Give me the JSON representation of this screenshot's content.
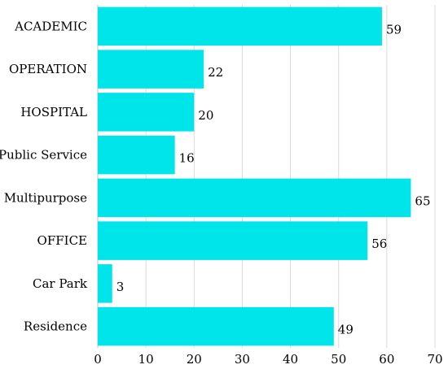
{
  "chart_data": {
    "type": "bar",
    "orientation": "horizontal",
    "categories": [
      "ACADEMIC",
      "OPERATION",
      "HOSPITAL",
      "Public Service",
      "Multipurpose",
      "OFFICE",
      "Car Park",
      "Residence"
    ],
    "values": [
      59,
      22,
      20,
      16,
      65,
      56,
      3,
      49
    ],
    "xlim": [
      0,
      70
    ],
    "xticks": [
      0,
      10,
      20,
      30,
      40,
      50,
      60,
      70
    ],
    "title": "",
    "xlabel": "",
    "ylabel": "",
    "grid": "vertical",
    "bar_color": "#00E5EA",
    "data_labels": true
  }
}
